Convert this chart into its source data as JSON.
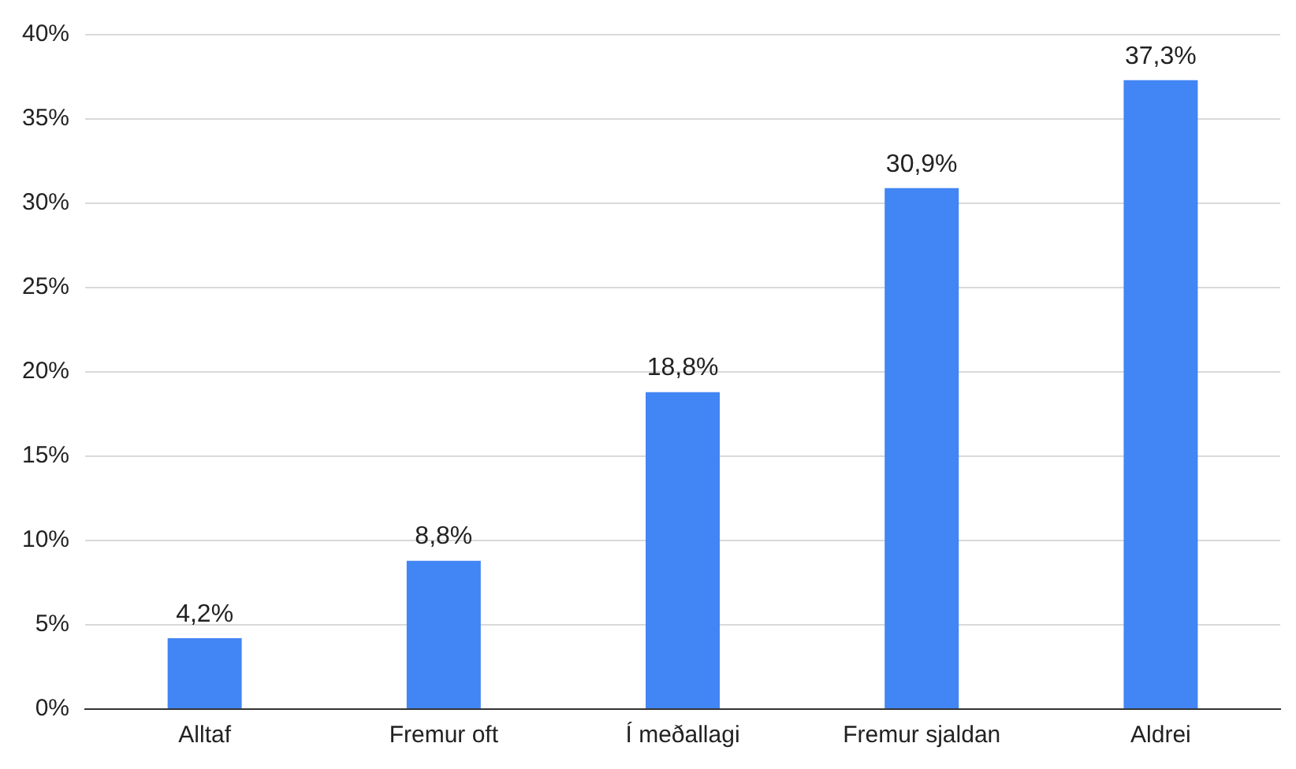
{
  "chart_data": {
    "type": "bar",
    "categories": [
      "Alltaf",
      "Fremur oft",
      "Í meðallagi",
      "Fremur sjaldan",
      "Aldrei"
    ],
    "values": [
      4.2,
      8.8,
      18.8,
      30.9,
      37.3
    ],
    "value_labels": [
      "4,2%",
      "8,8%",
      "18,8%",
      "30,9%",
      "37,3%"
    ],
    "color": "#4285f4",
    "ylim": [
      0,
      40
    ],
    "yticks": [
      {
        "value": 0,
        "label": "0%"
      },
      {
        "value": 5,
        "label": "5%"
      },
      {
        "value": 10,
        "label": "10%"
      },
      {
        "value": 15,
        "label": "15%"
      },
      {
        "value": 20,
        "label": "20%"
      },
      {
        "value": 25,
        "label": "25%"
      },
      {
        "value": 30,
        "label": "30%"
      },
      {
        "value": 35,
        "label": "35%"
      },
      {
        "value": 40,
        "label": "40%"
      }
    ],
    "grid": "y",
    "legend": false
  }
}
